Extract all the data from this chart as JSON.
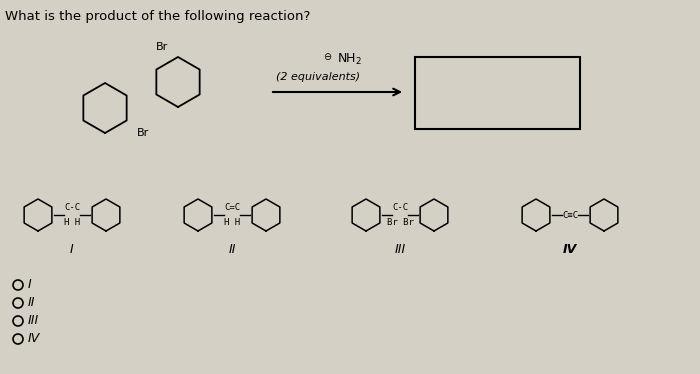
{
  "title": "What is the product of the following reaction?",
  "background_color": "#d4d0c5",
  "reagent_text": "$\\ominus$NH$_2$",
  "reagent_subtext": "(2 equivalents)",
  "answer_options": [
    "I",
    "II",
    "III",
    "IV"
  ],
  "roman_labels": [
    "I",
    "II",
    "III",
    "IV"
  ],
  "struct_I_link": [
    "C-C",
    "H H"
  ],
  "struct_II_link": [
    "C=C",
    "H H"
  ],
  "struct_III_link": [
    "C-C",
    "Br Br"
  ],
  "struct_IV_link": [
    "C≡C"
  ],
  "reactant_br_top": "Br",
  "reactant_br_bottom": "Br",
  "arrow_color": "#000000",
  "text_color": "#000000"
}
